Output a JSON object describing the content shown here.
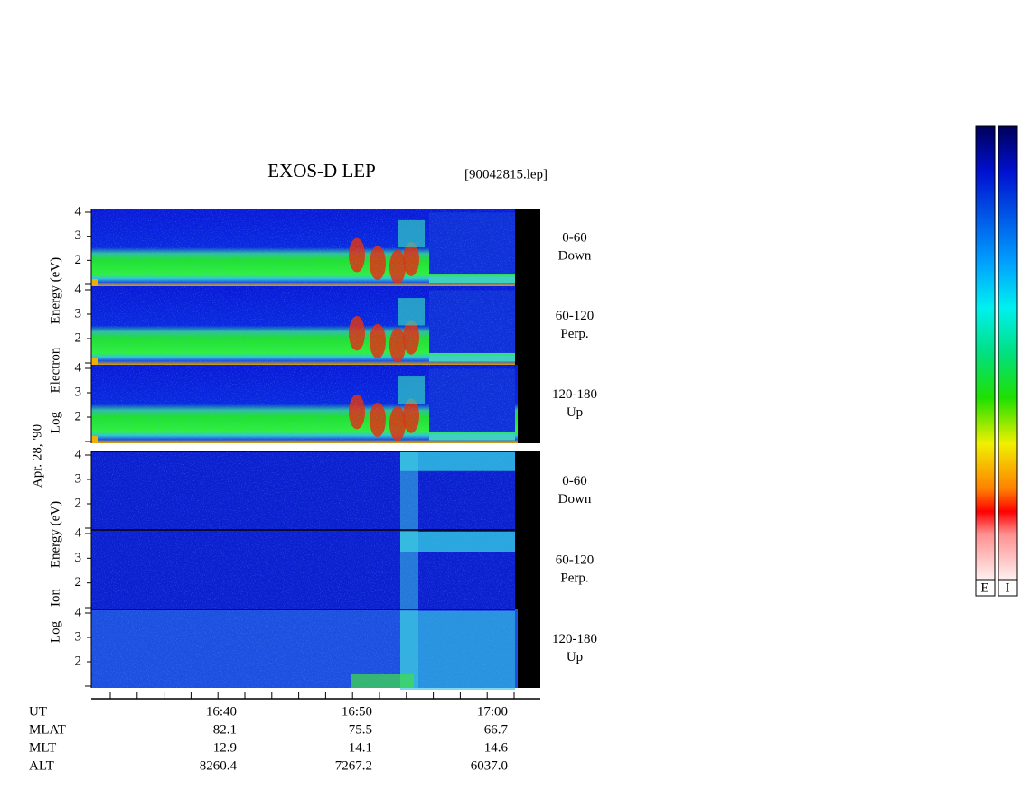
{
  "header": {
    "title": "EXOS-D LEP",
    "file": "[90042815.lep]"
  },
  "date": "Apr. 28, '90",
  "energy_ticks": [
    2,
    3,
    4
  ],
  "electron": {
    "axis_labels": [
      "Log",
      "Electron",
      "Energy (eV)"
    ],
    "panels": [
      {
        "range": "0-60",
        "direction": "Down"
      },
      {
        "range": "60-120",
        "direction": "Perp."
      },
      {
        "range": "120-180",
        "direction": "Up"
      }
    ]
  },
  "ion": {
    "axis_labels": [
      "Log",
      "Ion",
      "Energy (eV)"
    ],
    "panels": [
      {
        "range": "0-60",
        "direction": "Down"
      },
      {
        "range": "60-120",
        "direction": "Perp."
      },
      {
        "range": "120-180",
        "direction": "Up"
      }
    ]
  },
  "time_axis": {
    "ticks": [
      "16:40",
      "16:50",
      "17:00"
    ],
    "rows": [
      {
        "name": "UT"
      },
      {
        "name": "MLAT",
        "values": [
          "82.1",
          "75.5",
          "66.7"
        ]
      },
      {
        "name": "MLT",
        "values": [
          "12.9",
          "14.1",
          "14.6"
        ]
      },
      {
        "name": "ALT",
        "values": [
          "8260.4",
          "7267.2",
          "6037.0"
        ]
      }
    ]
  },
  "colorbar": {
    "labels": [
      "E",
      "I"
    ]
  }
}
